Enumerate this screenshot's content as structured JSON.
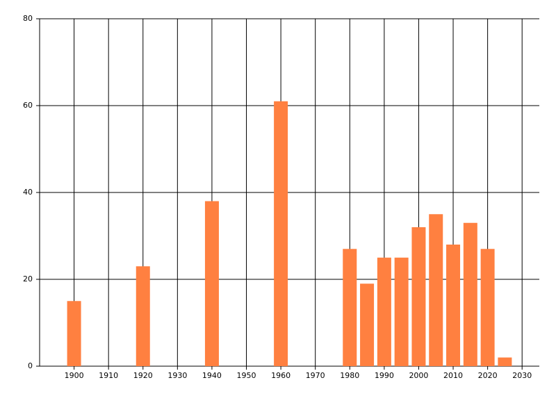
{
  "chart_data": {
    "type": "bar",
    "x": [
      1900,
      1920,
      1940,
      1960,
      1980,
      1985,
      1990,
      1995,
      2000,
      2005,
      2010,
      2015,
      2020,
      2025
    ],
    "values": [
      15,
      23,
      38,
      61,
      27,
      19,
      25,
      25,
      32,
      35,
      28,
      33,
      27,
      2
    ],
    "color": "#ff8040",
    "xlim": [
      1890,
      2035
    ],
    "xticks": [
      1900,
      1910,
      1920,
      1930,
      1940,
      1950,
      1960,
      1970,
      1980,
      1990,
      2000,
      2010,
      2020,
      2030
    ],
    "ylim": [
      0,
      80
    ],
    "yticks": [
      0,
      20,
      40,
      60,
      80
    ],
    "grid": true
  }
}
